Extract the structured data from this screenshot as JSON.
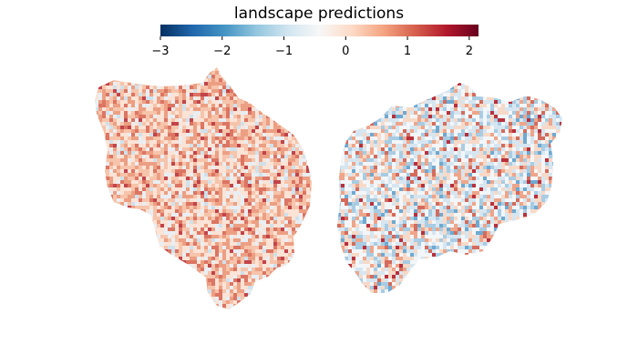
{
  "colorbar": {
    "title": "landscape predictions",
    "colormap": "RdBu_r",
    "range": [
      -3,
      2.15
    ],
    "ticks": [
      -3,
      -2,
      -1,
      0,
      1,
      2
    ],
    "tick_labels": [
      "−3",
      "−2",
      "−1",
      "0",
      "1",
      "2"
    ],
    "stops": [
      "#053061",
      "#2166ac",
      "#4393c3",
      "#92c5de",
      "#d1e5f0",
      "#f7f7f7",
      "#fddbc7",
      "#f4a582",
      "#d6604d",
      "#b2182b",
      "#67001f"
    ]
  },
  "flatmaps": {
    "left_hemisphere": {
      "dominant_tone": "positive (red)",
      "palette": [
        "#fbe3d6",
        "#f6c4ab",
        "#ec9f83",
        "#dc7563",
        "#c2444a",
        "#e8eef3",
        "#cfe1ec"
      ]
    },
    "right_hemisphere": {
      "dominant_tone": "mixed (blue and red)",
      "palette": [
        "#f3f6f8",
        "#d6e6f1",
        "#a8cce3",
        "#6fa9d1",
        "#f7d9c8",
        "#eea58a",
        "#d46b5c",
        "#b9303c"
      ]
    }
  }
}
